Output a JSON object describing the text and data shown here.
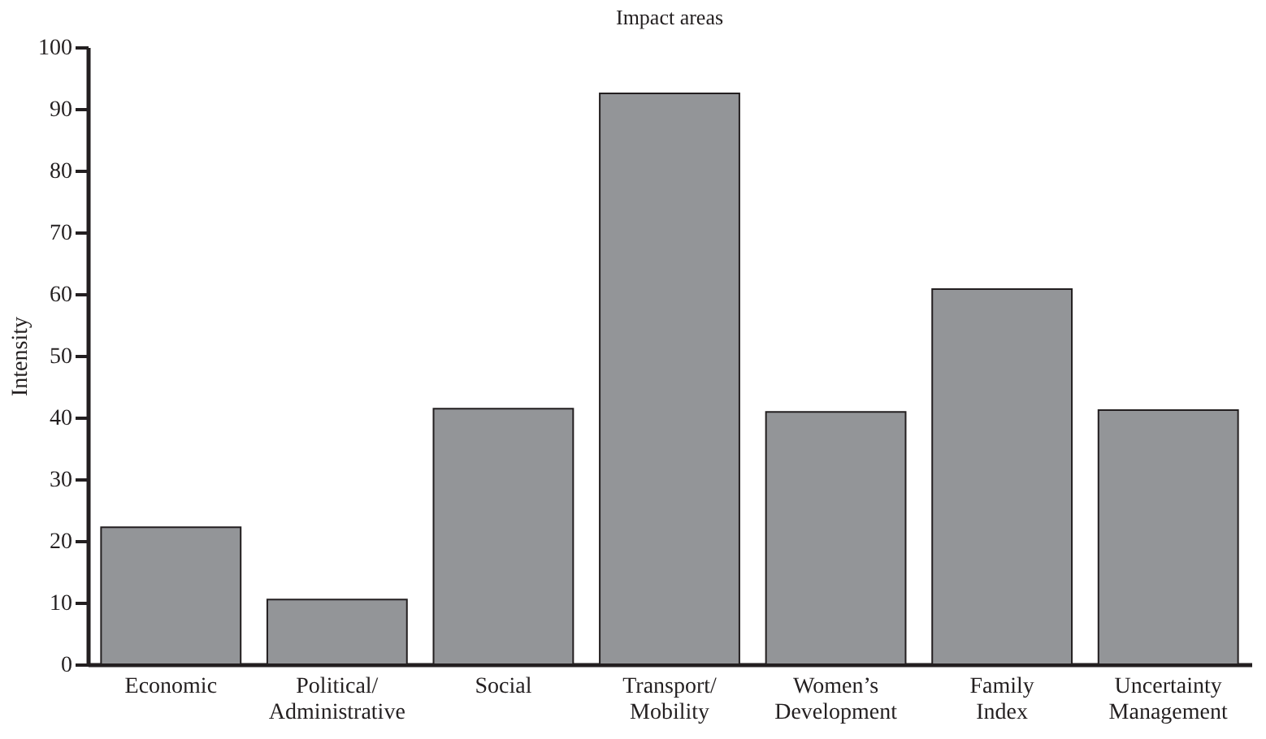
{
  "chart_data": {
    "type": "bar",
    "title": "Impact areas",
    "ylabel": "Intensity",
    "categories": [
      "Economic",
      "Political/\nAdministrative",
      "Social",
      "Transport/\nMobility",
      "Women’s\nDevelopment",
      "Family\nIndex",
      "Uncertainty\nManagement"
    ],
    "values": [
      22.2,
      10.5,
      41.4,
      92.5,
      40.9,
      60.8,
      41.2
    ],
    "color": "#939598",
    "ylim": [
      0,
      100
    ],
    "yticks": [
      0,
      10,
      20,
      30,
      40,
      50,
      60,
      70,
      80,
      90,
      100
    ],
    "grid": false
  }
}
